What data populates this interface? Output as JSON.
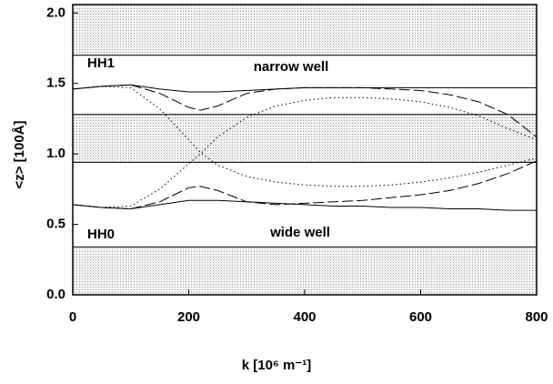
{
  "chart_data": {
    "type": "line",
    "xlabel": "k [10⁶ m⁻¹]",
    "ylabel": "<z> [100Å]",
    "annotations": [
      "HH1",
      "narrow well",
      "HH0",
      "wide well"
    ],
    "xlim": [
      0,
      800
    ],
    "ylim": [
      0,
      2.06
    ],
    "xticks": [
      0,
      200,
      400,
      600,
      800
    ],
    "yticks": [
      {
        "value": 0,
        "label": "0.0"
      },
      {
        "value": 0.5,
        "label": "0.5"
      },
      {
        "value": 1,
        "label": "1.0"
      },
      {
        "value": 1.5,
        "label": "1.5"
      },
      {
        "value": 2,
        "label": "2.0"
      }
    ],
    "bands": [
      [
        0,
        0.34
      ],
      [
        0.94,
        1.28
      ],
      [
        1.7,
        2.06
      ]
    ],
    "x": [
      0,
      50,
      100,
      150,
      200,
      220,
      250,
      300,
      350,
      400,
      450,
      500,
      550,
      600,
      650,
      700,
      750,
      800
    ],
    "series": [
      {
        "color": "#000000",
        "style": "solid",
        "values": [
          1.46,
          1.48,
          1.49,
          1.46,
          1.44,
          1.44,
          1.44,
          1.45,
          1.46,
          1.47,
          1.47,
          1.47,
          1.47,
          1.47,
          1.47,
          1.47,
          1.47,
          1.47
        ]
      },
      {
        "color": "#000000",
        "style": "solid",
        "values": [
          0.64,
          0.62,
          0.61,
          0.64,
          0.67,
          0.67,
          0.67,
          0.66,
          0.65,
          0.64,
          0.63,
          0.63,
          0.62,
          0.62,
          0.61,
          0.61,
          0.6,
          0.6
        ]
      },
      {
        "color": "#000000",
        "style": "dashed",
        "values": [
          1.46,
          1.48,
          1.49,
          1.43,
          1.33,
          1.31,
          1.34,
          1.43,
          1.46,
          1.47,
          1.47,
          1.47,
          1.46,
          1.45,
          1.42,
          1.37,
          1.28,
          1.12
        ]
      },
      {
        "color": "#000000",
        "style": "dashed",
        "values": [
          0.64,
          0.62,
          0.61,
          0.66,
          0.76,
          0.77,
          0.74,
          0.66,
          0.64,
          0.65,
          0.66,
          0.67,
          0.69,
          0.71,
          0.74,
          0.79,
          0.86,
          0.95
        ]
      },
      {
        "color": "#000000",
        "style": "dotted",
        "values": [
          0.64,
          0.62,
          0.63,
          0.75,
          0.93,
          1.0,
          1.12,
          1.26,
          1.34,
          1.38,
          1.4,
          1.4,
          1.39,
          1.37,
          1.33,
          1.27,
          1.18,
          1.1
        ]
      },
      {
        "color": "#000000",
        "style": "dotted",
        "values": [
          1.46,
          1.48,
          1.47,
          1.32,
          1.1,
          1.01,
          0.92,
          0.84,
          0.8,
          0.78,
          0.77,
          0.77,
          0.78,
          0.8,
          0.83,
          0.87,
          0.92,
          0.97
        ]
      }
    ]
  }
}
